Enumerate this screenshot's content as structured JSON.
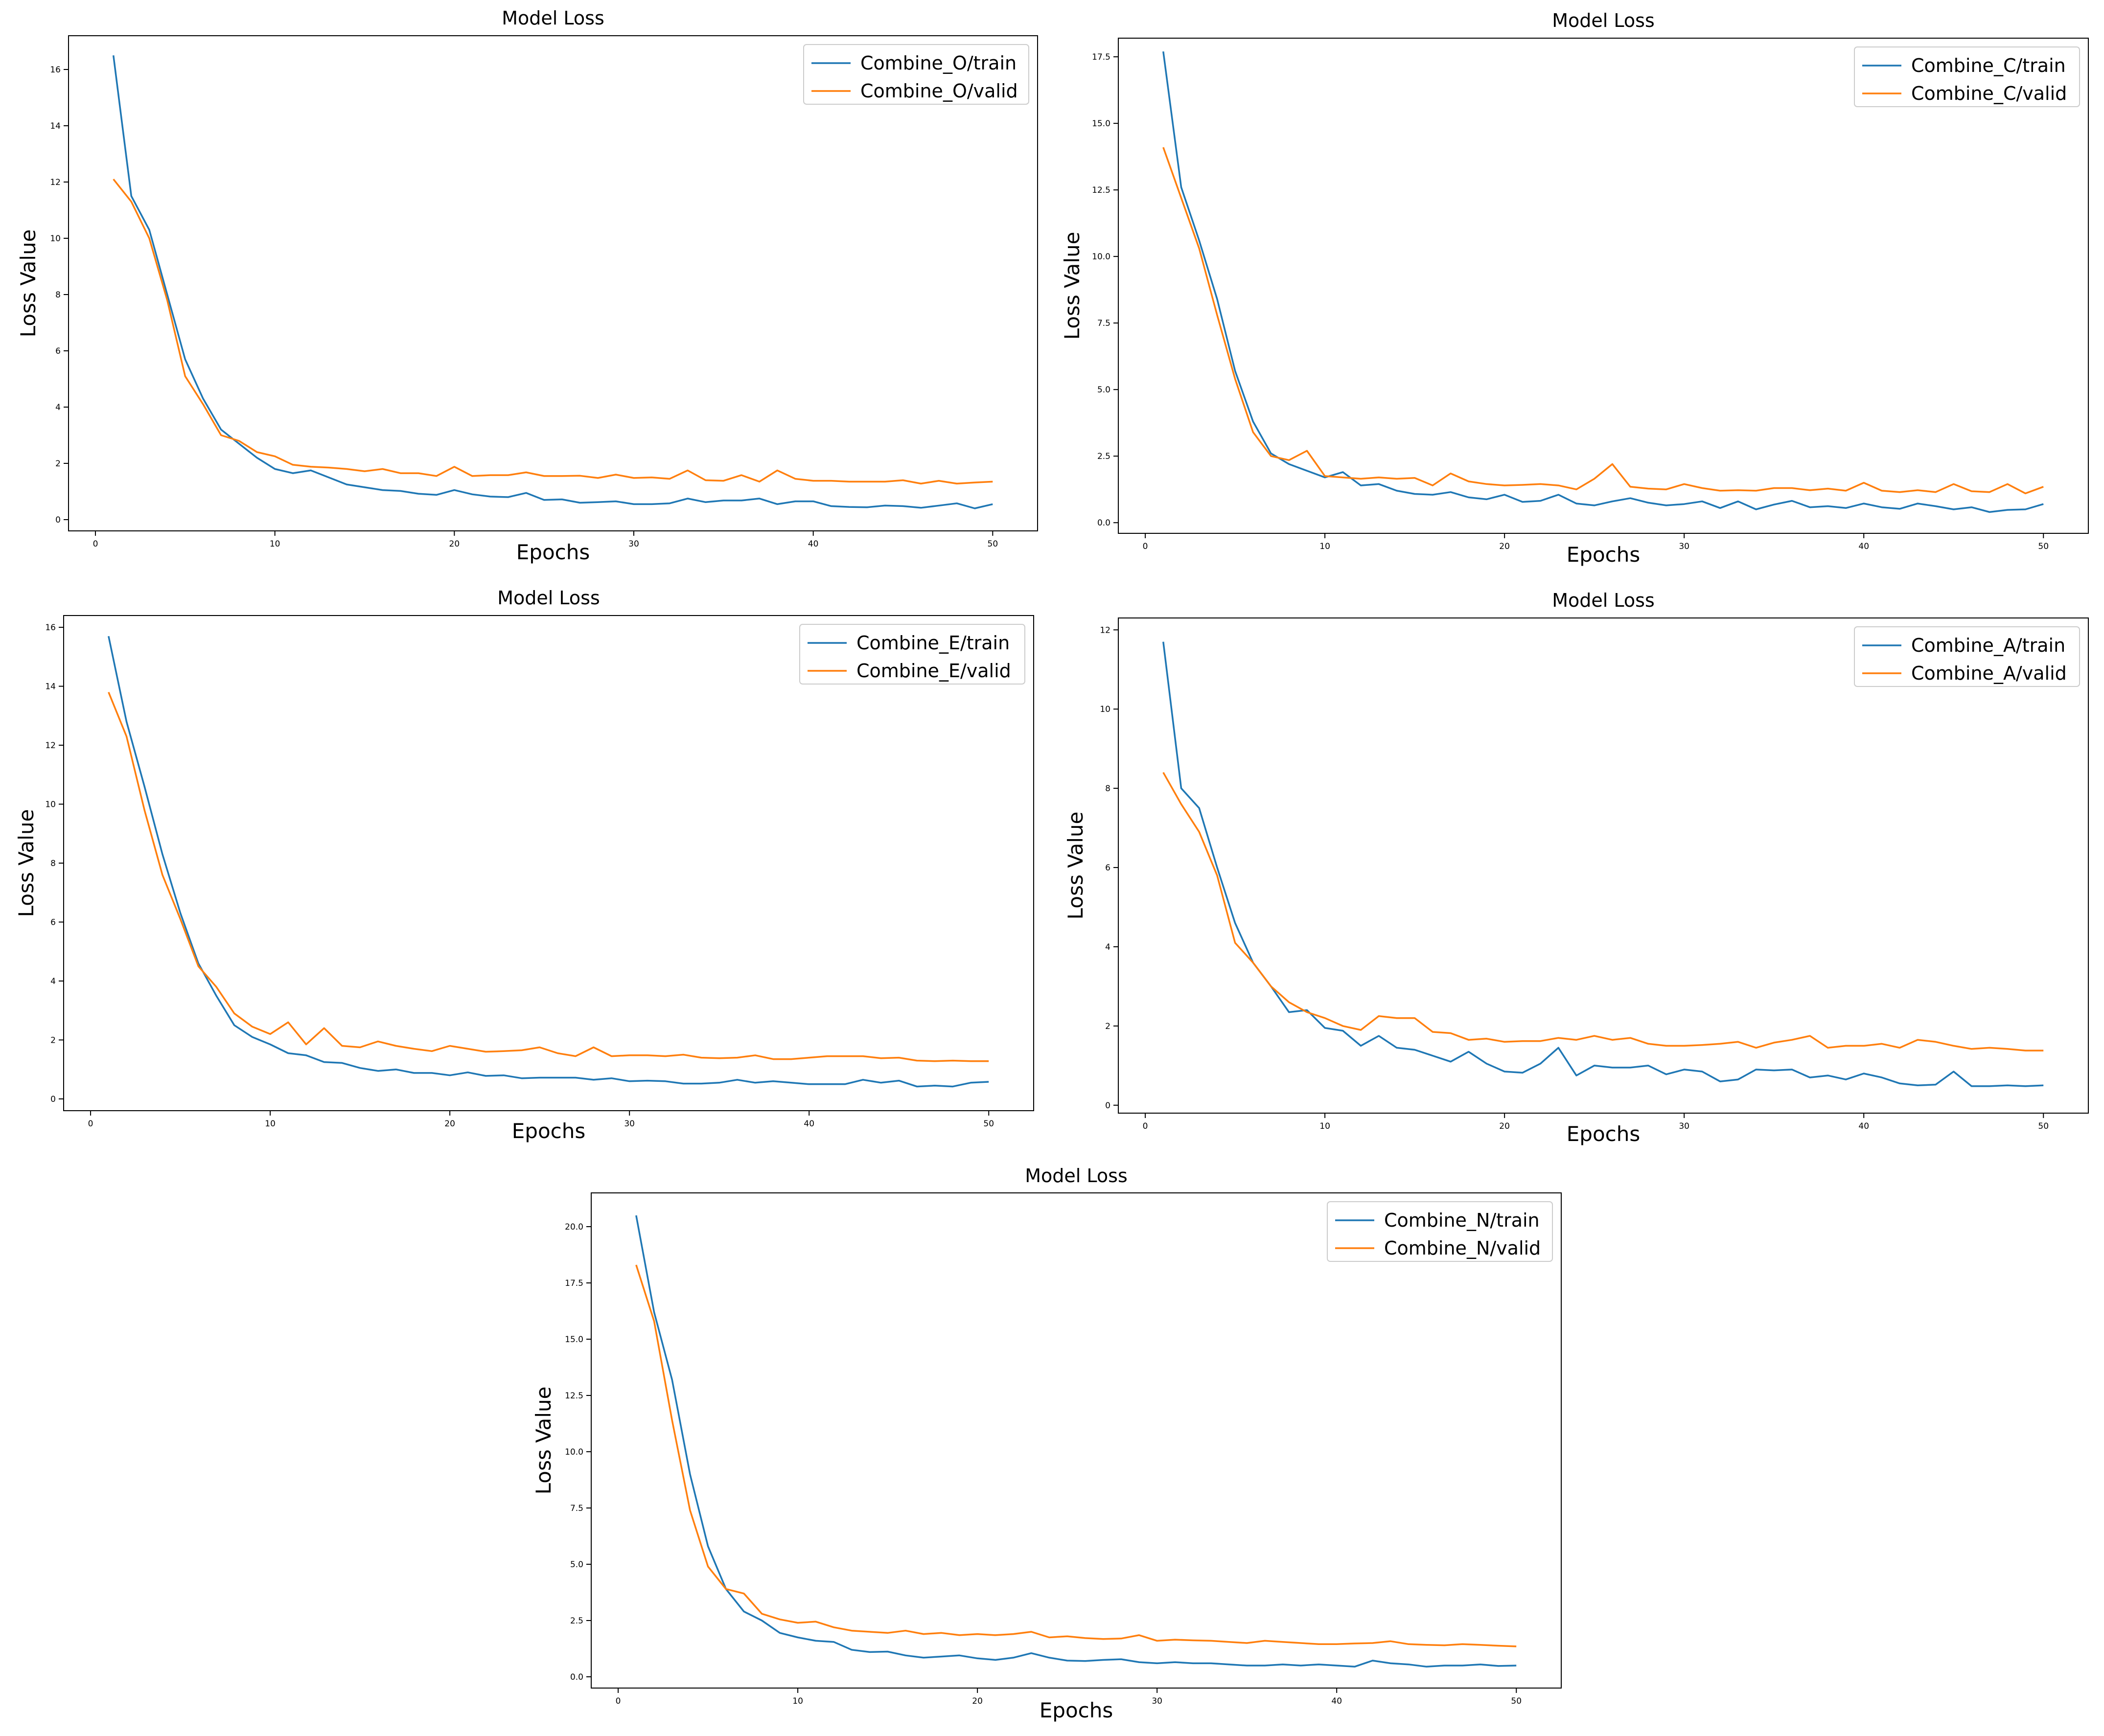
{
  "colors": {
    "train": "#1f77b4",
    "valid": "#ff7f0e"
  },
  "chart_data": [
    {
      "type": "line",
      "title": "Model Loss",
      "xlabel": "Epochs",
      "ylabel": "Loss Value",
      "xlim": [
        -1.5,
        52.5
      ],
      "ylim": [
        -0.4,
        17.2
      ],
      "xticks": [
        0,
        10,
        20,
        30,
        40,
        50
      ],
      "yticks": [
        0,
        2,
        4,
        6,
        8,
        10,
        12,
        14,
        16
      ],
      "ytick_labels": [
        "0",
        "2",
        "4",
        "6",
        "8",
        "10",
        "12",
        "14",
        "16"
      ],
      "legend_position": "top-right",
      "series": [
        {
          "name": "Combine_O/train",
          "color": "#1f77b4",
          "values": [
            16.5,
            11.5,
            10.3,
            8.0,
            5.7,
            4.3,
            3.2,
            2.7,
            2.2,
            1.8,
            1.65,
            1.75,
            1.5,
            1.25,
            1.15,
            1.05,
            1.02,
            0.92,
            0.88,
            1.05,
            0.9,
            0.82,
            0.8,
            0.95,
            0.7,
            0.72,
            0.6,
            0.62,
            0.65,
            0.55,
            0.55,
            0.58,
            0.75,
            0.62,
            0.68,
            0.68,
            0.75,
            0.55,
            0.65,
            0.65,
            0.48,
            0.45,
            0.44,
            0.5,
            0.48,
            0.42,
            0.5,
            0.58,
            0.4,
            0.55
          ]
        },
        {
          "name": "Combine_O/valid",
          "color": "#ff7f0e",
          "values": [
            12.1,
            11.3,
            10.0,
            7.8,
            5.1,
            4.1,
            3.0,
            2.8,
            2.4,
            2.25,
            1.95,
            1.88,
            1.85,
            1.8,
            1.72,
            1.8,
            1.65,
            1.65,
            1.55,
            1.88,
            1.55,
            1.58,
            1.58,
            1.68,
            1.55,
            1.55,
            1.56,
            1.48,
            1.6,
            1.48,
            1.5,
            1.45,
            1.75,
            1.4,
            1.38,
            1.58,
            1.35,
            1.75,
            1.45,
            1.38,
            1.38,
            1.35,
            1.35,
            1.35,
            1.4,
            1.28,
            1.38,
            1.28,
            1.32,
            1.35
          ]
        }
      ]
    },
    {
      "type": "line",
      "title": "Model Loss",
      "xlabel": "Epochs",
      "ylabel": "Loss Value",
      "xlim": [
        -1.5,
        52.5
      ],
      "ylim": [
        -0.4,
        18.2
      ],
      "xticks": [
        0,
        10,
        20,
        30,
        40,
        50
      ],
      "yticks": [
        0,
        2.5,
        5,
        7.5,
        10,
        12.5,
        15,
        17.5
      ],
      "ytick_labels": [
        "0.0",
        "2.5",
        "5.0",
        "7.5",
        "10.0",
        "12.5",
        "15.0",
        "17.5"
      ],
      "legend_position": "top-right",
      "series": [
        {
          "name": "Combine_C/train",
          "color": "#1f77b4",
          "values": [
            17.7,
            12.6,
            10.6,
            8.4,
            5.7,
            3.8,
            2.6,
            2.2,
            1.95,
            1.7,
            1.9,
            1.4,
            1.45,
            1.2,
            1.08,
            1.05,
            1.15,
            0.95,
            0.88,
            1.05,
            0.78,
            0.82,
            1.05,
            0.72,
            0.65,
            0.8,
            0.92,
            0.75,
            0.65,
            0.7,
            0.8,
            0.55,
            0.8,
            0.5,
            0.68,
            0.82,
            0.58,
            0.62,
            0.55,
            0.72,
            0.58,
            0.52,
            0.72,
            0.62,
            0.5,
            0.58,
            0.4,
            0.48,
            0.5,
            0.7
          ]
        },
        {
          "name": "Combine_C/valid",
          "color": "#ff7f0e",
          "values": [
            14.1,
            12.2,
            10.3,
            7.8,
            5.4,
            3.4,
            2.5,
            2.35,
            2.7,
            1.75,
            1.7,
            1.65,
            1.7,
            1.65,
            1.68,
            1.4,
            1.85,
            1.55,
            1.45,
            1.4,
            1.42,
            1.45,
            1.4,
            1.25,
            1.65,
            2.2,
            1.35,
            1.28,
            1.25,
            1.45,
            1.3,
            1.2,
            1.22,
            1.2,
            1.3,
            1.3,
            1.22,
            1.28,
            1.2,
            1.5,
            1.2,
            1.15,
            1.22,
            1.15,
            1.45,
            1.18,
            1.15,
            1.45,
            1.1,
            1.35
          ]
        }
      ]
    },
    {
      "type": "line",
      "title": "Model Loss",
      "xlabel": "Epochs",
      "ylabel": "Loss Value",
      "xlim": [
        -1.5,
        52.5
      ],
      "ylim": [
        -0.4,
        16.4
      ],
      "xticks": [
        0,
        10,
        20,
        30,
        40,
        50
      ],
      "yticks": [
        0,
        2,
        4,
        6,
        8,
        10,
        12,
        14,
        16
      ],
      "ytick_labels": [
        "0",
        "2",
        "4",
        "6",
        "8",
        "10",
        "12",
        "14",
        "16"
      ],
      "legend_position": "top-right",
      "series": [
        {
          "name": "Combine_E/train",
          "color": "#1f77b4",
          "values": [
            15.7,
            12.8,
            10.6,
            8.3,
            6.3,
            4.6,
            3.5,
            2.5,
            2.1,
            1.85,
            1.55,
            1.48,
            1.25,
            1.22,
            1.05,
            0.95,
            1.0,
            0.88,
            0.88,
            0.8,
            0.9,
            0.78,
            0.8,
            0.7,
            0.72,
            0.72,
            0.72,
            0.65,
            0.7,
            0.6,
            0.62,
            0.6,
            0.52,
            0.52,
            0.55,
            0.65,
            0.55,
            0.6,
            0.55,
            0.5,
            0.5,
            0.5,
            0.65,
            0.55,
            0.62,
            0.42,
            0.45,
            0.42,
            0.55,
            0.58
          ]
        },
        {
          "name": "Combine_E/valid",
          "color": "#ff7f0e",
          "values": [
            13.8,
            12.3,
            9.8,
            7.6,
            6.1,
            4.5,
            3.8,
            2.9,
            2.45,
            2.2,
            2.6,
            1.85,
            2.4,
            1.8,
            1.75,
            1.95,
            1.8,
            1.7,
            1.62,
            1.8,
            1.7,
            1.6,
            1.62,
            1.65,
            1.75,
            1.55,
            1.45,
            1.75,
            1.45,
            1.48,
            1.48,
            1.45,
            1.5,
            1.4,
            1.38,
            1.4,
            1.48,
            1.35,
            1.35,
            1.4,
            1.45,
            1.45,
            1.45,
            1.38,
            1.4,
            1.3,
            1.28,
            1.3,
            1.28,
            1.28
          ]
        }
      ]
    },
    {
      "type": "line",
      "title": "Model Loss",
      "xlabel": "Epochs",
      "ylabel": "Loss Value",
      "xlim": [
        -1.5,
        52.5
      ],
      "ylim": [
        -0.2,
        12.3
      ],
      "xticks": [
        0,
        10,
        20,
        30,
        40,
        50
      ],
      "yticks": [
        0,
        2,
        4,
        6,
        8,
        10,
        12
      ],
      "ytick_labels": [
        "0",
        "2",
        "4",
        "6",
        "8",
        "10",
        "12"
      ],
      "legend_position": "top-right",
      "series": [
        {
          "name": "Combine_A/train",
          "color": "#1f77b4",
          "values": [
            11.7,
            8.0,
            7.5,
            6.0,
            4.6,
            3.6,
            3.0,
            2.35,
            2.4,
            1.95,
            1.88,
            1.5,
            1.75,
            1.45,
            1.4,
            1.25,
            1.1,
            1.35,
            1.05,
            0.85,
            0.82,
            1.05,
            1.45,
            0.75,
            1.0,
            0.95,
            0.95,
            1.0,
            0.78,
            0.9,
            0.85,
            0.6,
            0.65,
            0.9,
            0.88,
            0.9,
            0.7,
            0.75,
            0.65,
            0.8,
            0.7,
            0.55,
            0.5,
            0.52,
            0.85,
            0.48,
            0.48,
            0.5,
            0.48,
            0.5
          ]
        },
        {
          "name": "Combine_A/valid",
          "color": "#ff7f0e",
          "values": [
            8.4,
            7.6,
            6.9,
            5.8,
            4.1,
            3.6,
            3.0,
            2.6,
            2.35,
            2.2,
            2.0,
            1.9,
            2.25,
            2.2,
            2.2,
            1.85,
            1.82,
            1.65,
            1.68,
            1.6,
            1.62,
            1.62,
            1.7,
            1.65,
            1.75,
            1.65,
            1.7,
            1.55,
            1.5,
            1.5,
            1.52,
            1.55,
            1.6,
            1.45,
            1.58,
            1.65,
            1.75,
            1.45,
            1.5,
            1.5,
            1.55,
            1.45,
            1.65,
            1.6,
            1.5,
            1.42,
            1.45,
            1.42,
            1.38,
            1.38
          ]
        }
      ]
    },
    {
      "type": "line",
      "title": "Model Loss",
      "xlabel": "Epochs",
      "ylabel": "Loss Value",
      "xlim": [
        -1.5,
        52.5
      ],
      "ylim": [
        -0.5,
        21.5
      ],
      "xticks": [
        0,
        10,
        20,
        30,
        40,
        50
      ],
      "yticks": [
        0,
        2.5,
        5,
        7.5,
        10,
        12.5,
        15,
        17.5,
        20
      ],
      "ytick_labels": [
        "0.0",
        "2.5",
        "5.0",
        "7.5",
        "10.0",
        "12.5",
        "15.0",
        "17.5",
        "20.0"
      ],
      "legend_position": "top-right",
      "series": [
        {
          "name": "Combine_N/train",
          "color": "#1f77b4",
          "values": [
            20.5,
            16.2,
            13.2,
            9.0,
            5.8,
            3.9,
            2.9,
            2.5,
            1.95,
            1.75,
            1.6,
            1.55,
            1.2,
            1.1,
            1.12,
            0.95,
            0.85,
            0.9,
            0.95,
            0.82,
            0.75,
            0.85,
            1.05,
            0.85,
            0.72,
            0.7,
            0.75,
            0.78,
            0.65,
            0.6,
            0.65,
            0.6,
            0.6,
            0.55,
            0.5,
            0.5,
            0.55,
            0.5,
            0.55,
            0.5,
            0.45,
            0.72,
            0.6,
            0.55,
            0.45,
            0.5,
            0.5,
            0.55,
            0.48,
            0.5
          ]
        },
        {
          "name": "Combine_N/valid",
          "color": "#ff7f0e",
          "values": [
            18.3,
            15.8,
            11.4,
            7.4,
            4.9,
            3.9,
            3.7,
            2.8,
            2.55,
            2.4,
            2.45,
            2.2,
            2.05,
            2.0,
            1.95,
            2.05,
            1.9,
            1.95,
            1.85,
            1.9,
            1.85,
            1.9,
            2.0,
            1.75,
            1.8,
            1.72,
            1.68,
            1.7,
            1.85,
            1.6,
            1.65,
            1.62,
            1.6,
            1.55,
            1.5,
            1.6,
            1.55,
            1.5,
            1.45,
            1.45,
            1.48,
            1.5,
            1.58,
            1.45,
            1.42,
            1.4,
            1.45,
            1.42,
            1.38,
            1.35
          ]
        }
      ]
    }
  ]
}
